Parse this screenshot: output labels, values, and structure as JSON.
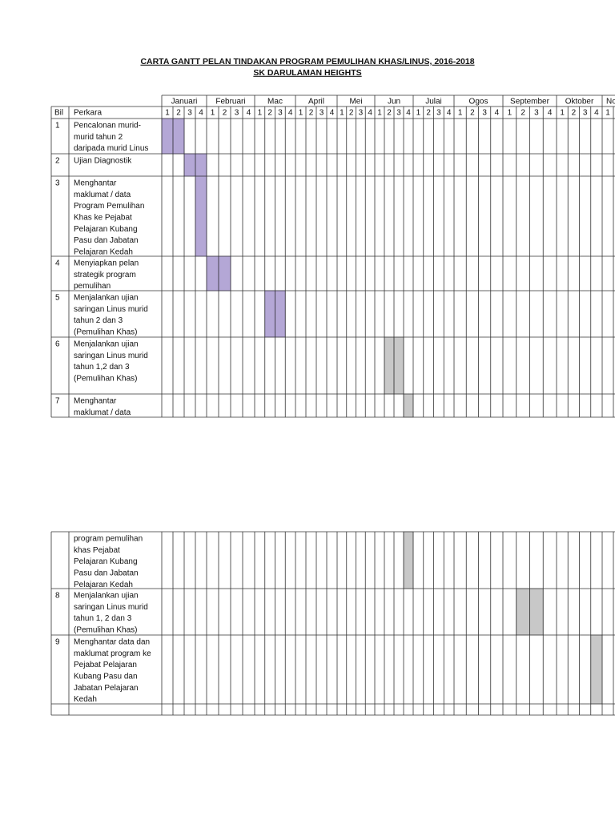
{
  "header": {
    "title": "CARTA GANTT PELAN TINDAKAN PROGRAM PEMULIHAN KHAS/LINUS, 2016-2018",
    "subtitle": "SK DARULAMAN HEIGHTS"
  },
  "table": {
    "months": [
      "Januari",
      "Februari",
      "Mac",
      "April",
      "Mei",
      "Jun",
      "Julai",
      "Ogos",
      "September",
      "Oktober",
      "No"
    ],
    "week_labels": [
      "1",
      "2",
      "3",
      "4"
    ],
    "columns": {
      "bil": "Bil",
      "perkara": "Perkara"
    },
    "rows": [
      {
        "bil": "1",
        "perkara": [
          "Pencalonan murid-",
          "murid tahun 2",
          "daripada murid Linus"
        ]
      },
      {
        "bil": "2",
        "perkara": [
          "Ujian Diagnostik"
        ]
      },
      {
        "bil": "3",
        "perkara": [
          "Menghantar",
          "maklumat / data",
          "Program Pemulihan",
          "Khas ke Pejabat",
          "Pelajaran Kubang",
          "Pasu dan Jabatan",
          "Pelajaran Kedah"
        ]
      },
      {
        "bil": "4",
        "perkara": [
          "Menyiapkan pelan",
          "strategik program",
          "pemulihan"
        ]
      },
      {
        "bil": "5",
        "perkara": [
          "Menjalankan ujian",
          "saringan Linus murid",
          "tahun 2 dan 3",
          "(Pemulihan Khas)"
        ]
      },
      {
        "bil": "6",
        "perkara": [
          "Menjalankan ujian",
          "saringan Linus murid",
          "tahun 1,2 dan 3",
          "(Pemulihan Khas)"
        ]
      },
      {
        "bil": "7",
        "perkara": [
          "Menghantar",
          "maklumat / data"
        ],
        "perkara_continued": [
          "program pemulihan",
          "khas  Pejabat",
          "Pelajaran Kubang",
          "Pasu dan Jabatan",
          "Pelajaran Kedah"
        ]
      },
      {
        "bil": "8",
        "perkara": [
          "Menjalankan ujian",
          "saringan Linus murid",
          "tahun 1, 2 dan 3",
          "(Pemulihan Khas)"
        ]
      },
      {
        "bil": "9",
        "perkara": [
          "Menghantar data dan",
          "maklumat program ke",
          "Pejabat Pelajaran",
          "Kubang Pasu dan",
          "Jabatan Pelajaran",
          "Kedah"
        ]
      }
    ]
  }
}
